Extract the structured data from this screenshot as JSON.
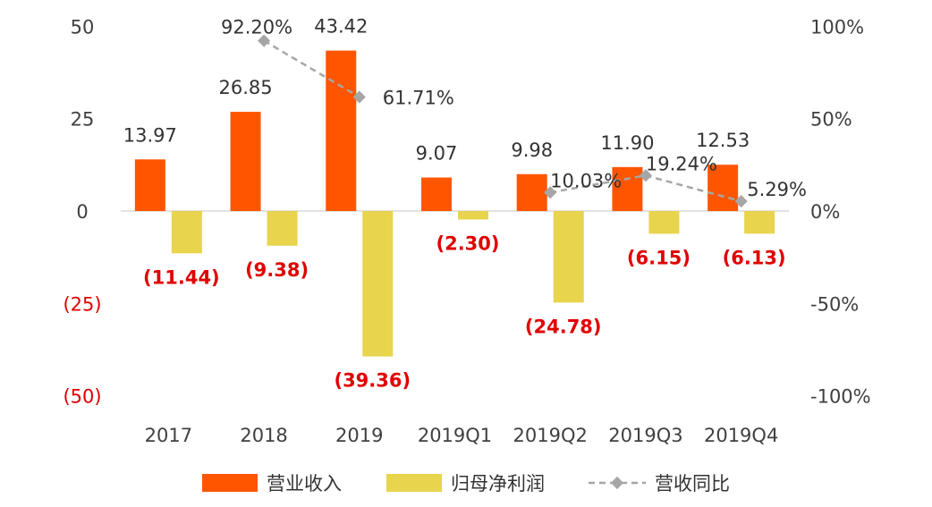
{
  "chart_data": {
    "type": "bar",
    "categories": [
      "2017",
      "2018",
      "2019",
      "2019Q1",
      "2019Q2",
      "2019Q3",
      "2019Q4"
    ],
    "series": [
      {
        "name": "营业收入",
        "kind": "bar",
        "color": "#ff5500",
        "values": [
          13.97,
          26.85,
          43.42,
          9.07,
          9.98,
          11.9,
          12.53
        ],
        "labels": [
          "13.97",
          "26.85",
          "43.42",
          "9.07",
          "9.98",
          "11.90",
          "12.53"
        ]
      },
      {
        "name": "归母净利润",
        "kind": "bar",
        "color": "#e8d44d",
        "values": [
          -11.44,
          -9.38,
          -39.36,
          -2.3,
          -24.78,
          -6.15,
          -6.13
        ],
        "labels": [
          "(11.44)",
          "(9.38)",
          "(39.36)",
          "(2.30)",
          "(24.78)",
          "(6.15)",
          "(6.13)"
        ]
      },
      {
        "name": "营收同比",
        "kind": "line",
        "axis": "right",
        "color": "#a6a6a6",
        "values": [
          null,
          92.2,
          61.71,
          null,
          10.03,
          19.24,
          5.29
        ],
        "labels": [
          null,
          "92.20%",
          "61.71%",
          null,
          "10.03%",
          "19.24%",
          "5.29%"
        ]
      }
    ],
    "left_axis": {
      "ylim": [
        -50,
        50
      ],
      "ticks": [
        50,
        25,
        0,
        -25,
        -50
      ],
      "tick_labels": [
        "50",
        "25",
        "0",
        "(25)",
        "(50)"
      ]
    },
    "right_axis": {
      "ylim": [
        -100,
        100
      ],
      "ticks": [
        100,
        50,
        0,
        -50,
        -100
      ],
      "tick_labels": [
        "100%",
        "50%",
        "0%",
        "-50%",
        "-100%"
      ]
    },
    "negative_color": "#e00000",
    "grid": false,
    "legend_position": "bottom"
  }
}
